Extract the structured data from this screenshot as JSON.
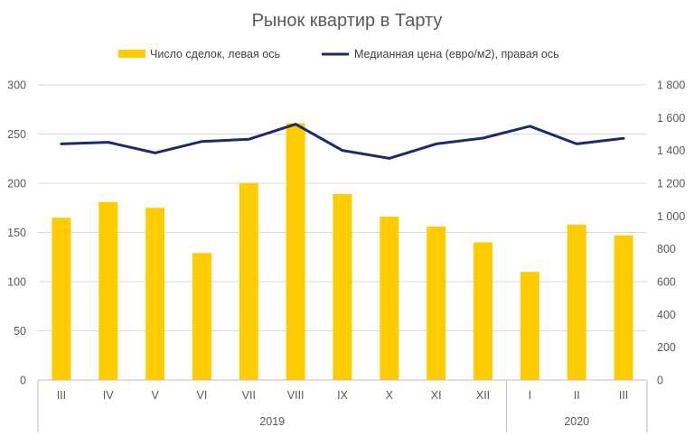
{
  "chart_data": {
    "type": "bar",
    "title": "Рынок квартир в Тарту",
    "categories": [
      "III",
      "IV",
      "V",
      "VI",
      "VII",
      "VIII",
      "IX",
      "X",
      "XI",
      "XII",
      "I",
      "II",
      "III"
    ],
    "groups": [
      {
        "label": "2019",
        "count": 10
      },
      {
        "label": "2020",
        "count": 3
      }
    ],
    "series": [
      {
        "name": "Число сделок, левая ось",
        "type": "bar",
        "axis": "left",
        "color": "#FFCC00",
        "values": [
          165,
          181,
          175,
          129,
          200,
          261,
          189,
          166,
          156,
          140,
          110,
          158,
          147
        ]
      },
      {
        "name": "Медианная цена (евро/м2), правая ось",
        "type": "line",
        "axis": "right",
        "color": "#1A2D6B",
        "values": [
          1440,
          1450,
          1385,
          1455,
          1468,
          1560,
          1400,
          1352,
          1440,
          1475,
          1548,
          1440,
          1474
        ]
      }
    ],
    "y_left": {
      "ylim": [
        0,
        300
      ],
      "ticks": [
        "0",
        "50",
        "100",
        "150",
        "200",
        "250",
        "300"
      ],
      "tick_values": [
        0,
        50,
        100,
        150,
        200,
        250,
        300
      ]
    },
    "y_right": {
      "ylim": [
        0,
        1800
      ],
      "ticks": [
        "0",
        "200",
        "400",
        "600",
        "800",
        "1 000",
        "1 200",
        "1 400",
        "1 600",
        "1 800"
      ],
      "tick_values": [
        0,
        200,
        400,
        600,
        800,
        1000,
        1200,
        1400,
        1600,
        1800
      ]
    },
    "grid": true,
    "legend_position": "top"
  },
  "colors": {
    "grid": "#D9D9D9",
    "axis": "#BFBFBF",
    "text": "#595959"
  }
}
